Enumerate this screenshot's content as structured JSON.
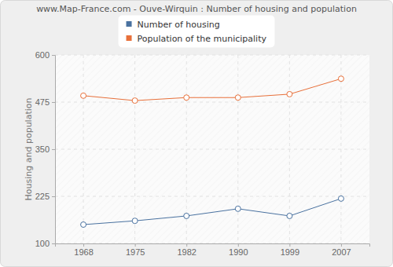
{
  "chart_data": {
    "type": "line",
    "title": "www.Map-France.com - Ouve-Wirquin : Number of housing and population",
    "y_label": "Housing and population",
    "categories": [
      "1968",
      "1975",
      "1982",
      "1990",
      "1999",
      "2007"
    ],
    "series": [
      {
        "name": "Number of housing",
        "color": "#4a72a0",
        "marker": "circle",
        "values": [
          150,
          160,
          173,
          192,
          173,
          219
        ]
      },
      {
        "name": "Population of the municipality",
        "color": "#e8703a",
        "marker": "circle",
        "values": [
          492,
          479,
          487,
          487,
          496,
          537
        ]
      }
    ],
    "ylim": [
      100,
      600
    ],
    "yticks": [
      100,
      225,
      350,
      475,
      600
    ],
    "grid": true,
    "legend": "top"
  }
}
